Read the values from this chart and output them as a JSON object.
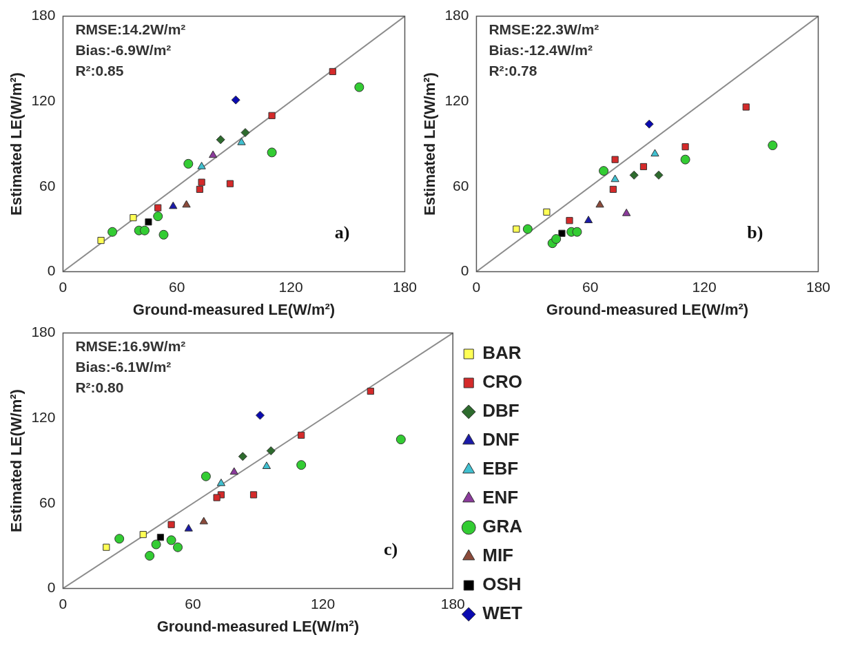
{
  "chart_data": [
    {
      "type": "scatter",
      "xlabel": "Ground-measured LE(W/m²)",
      "ylabel": "Estimated LE(W/m²)",
      "xlim": [
        0,
        180
      ],
      "xticks": [
        0,
        60,
        120,
        180
      ],
      "ylim": [
        0,
        180
      ],
      "yticks": [
        0,
        60,
        120,
        180
      ],
      "grid": false,
      "legend": false,
      "annotations": [
        "RMSE:14.2W/m²",
        "Bias:-6.9W/m²",
        "R²:0.85",
        "a)"
      ],
      "series": [
        {
          "type": "line",
          "color": "#8c8c8c",
          "marker": "none",
          "x": [
            0,
            180
          ],
          "values": [
            0,
            180
          ]
        },
        {
          "color": "#ffff55",
          "marker": "square",
          "x": [
            20,
            37
          ],
          "values": [
            22,
            38
          ]
        },
        {
          "color": "#d42a2a",
          "marker": "square",
          "x": [
            142,
            110,
            50,
            73,
            72,
            88
          ],
          "values": [
            141,
            110,
            45,
            63,
            58,
            62
          ]
        },
        {
          "color": "#2e6b2e",
          "marker": "diamond",
          "x": [
            83,
            96
          ],
          "values": [
            93,
            98
          ]
        },
        {
          "color": "#1a1aa8",
          "marker": "triangle",
          "x": [
            58
          ],
          "values": [
            46
          ]
        },
        {
          "color": "#40c0d0",
          "marker": "triangle",
          "x": [
            94,
            73
          ],
          "values": [
            91,
            74
          ]
        },
        {
          "color": "#8b3a9b",
          "marker": "triangle",
          "x": [
            79
          ],
          "values": [
            82
          ]
        },
        {
          "color": "#33cc33",
          "marker": "circle",
          "x": [
            156,
            110,
            66,
            26,
            50,
            40,
            43,
            53
          ],
          "values": [
            130,
            84,
            76,
            28,
            39,
            29,
            29,
            26
          ]
        },
        {
          "color": "#8b4a3a",
          "marker": "triangle",
          "x": [
            65
          ],
          "values": [
            47
          ]
        },
        {
          "color": "#000000",
          "marker": "square",
          "x": [
            45
          ],
          "values": [
            35
          ]
        },
        {
          "color": "#0a0ab0",
          "marker": "diamond",
          "x": [
            91
          ],
          "values": [
            121
          ]
        }
      ]
    },
    {
      "type": "scatter",
      "xlabel": "Ground-measured LE(W/m²)",
      "ylabel": "Estimated LE(W/m²)",
      "xlim": [
        0,
        180
      ],
      "xticks": [
        0,
        60,
        120,
        180
      ],
      "ylim": [
        0,
        180
      ],
      "yticks": [
        0,
        60,
        120,
        180
      ],
      "grid": false,
      "legend": false,
      "annotations": [
        "RMSE:22.3W/m²",
        "Bias:-12.4W/m²",
        "R²:0.78",
        "b)"
      ],
      "series": [
        {
          "type": "line",
          "color": "#8c8c8c",
          "marker": "none",
          "x": [
            0,
            180
          ],
          "values": [
            0,
            180
          ]
        },
        {
          "color": "#ffff55",
          "marker": "square",
          "x": [
            21,
            37
          ],
          "values": [
            30,
            42
          ]
        },
        {
          "color": "#d42a2a",
          "marker": "square",
          "x": [
            142,
            110,
            73,
            88,
            72,
            49
          ],
          "values": [
            116,
            88,
            79,
            74,
            58,
            36
          ]
        },
        {
          "color": "#2e6b2e",
          "marker": "diamond",
          "x": [
            83,
            96
          ],
          "values": [
            68,
            68
          ]
        },
        {
          "color": "#1a1aa8",
          "marker": "triangle",
          "x": [
            59
          ],
          "values": [
            36
          ]
        },
        {
          "color": "#40c0d0",
          "marker": "triangle",
          "x": [
            94,
            73
          ],
          "values": [
            83,
            65
          ]
        },
        {
          "color": "#8b3a9b",
          "marker": "triangle",
          "x": [
            79
          ],
          "values": [
            41
          ]
        },
        {
          "color": "#33cc33",
          "marker": "circle",
          "x": [
            156,
            110,
            67,
            27,
            50,
            53,
            40,
            42
          ],
          "values": [
            89,
            79,
            71,
            30,
            28,
            28,
            20,
            23
          ]
        },
        {
          "color": "#8b4a3a",
          "marker": "triangle",
          "x": [
            65
          ],
          "values": [
            47
          ]
        },
        {
          "color": "#000000",
          "marker": "square",
          "x": [
            45
          ],
          "values": [
            27
          ]
        },
        {
          "color": "#0a0ab0",
          "marker": "diamond",
          "x": [
            91
          ],
          "values": [
            104
          ]
        }
      ]
    },
    {
      "type": "scatter",
      "xlabel": "Ground-measured LE(W/m²)",
      "ylabel": "Estimated LE(W/m²)",
      "xlim": [
        0,
        180
      ],
      "xticks": [
        0,
        60,
        120,
        180
      ],
      "ylim": [
        0,
        180
      ],
      "yticks": [
        0,
        60,
        120,
        180
      ],
      "grid": false,
      "legend": "right",
      "annotations": [
        "RMSE:16.9W/m²",
        "Bias:-6.1W/m²",
        "R²:0.80",
        "c)"
      ],
      "series": [
        {
          "type": "line",
          "color": "#8c8c8c",
          "marker": "none",
          "x": [
            0,
            180
          ],
          "values": [
            0,
            180
          ]
        },
        {
          "name": "BAR",
          "color": "#ffff55",
          "marker": "square",
          "x": [
            20,
            37
          ],
          "values": [
            29,
            38
          ]
        },
        {
          "name": "CRO",
          "color": "#d42a2a",
          "marker": "square",
          "x": [
            142,
            110,
            50,
            73,
            71,
            88
          ],
          "values": [
            139,
            108,
            45,
            66,
            64,
            66
          ]
        },
        {
          "name": "DBF",
          "color": "#2e6b2e",
          "marker": "diamond",
          "x": [
            83,
            96
          ],
          "values": [
            93,
            97
          ]
        },
        {
          "name": "DNF",
          "color": "#1a1aa8",
          "marker": "triangle",
          "x": [
            58
          ],
          "values": [
            42
          ]
        },
        {
          "name": "EBF",
          "color": "#40c0d0",
          "marker": "triangle",
          "x": [
            94,
            73
          ],
          "values": [
            86,
            74
          ]
        },
        {
          "name": "ENF",
          "color": "#8b3a9b",
          "marker": "triangle",
          "x": [
            79
          ],
          "values": [
            82
          ]
        },
        {
          "name": "GRA",
          "color": "#33cc33",
          "marker": "circle",
          "x": [
            156,
            110,
            66,
            26,
            50,
            43,
            53,
            40
          ],
          "values": [
            105,
            87,
            79,
            35,
            34,
            31,
            29,
            23
          ]
        },
        {
          "name": "MIF",
          "color": "#8b4a3a",
          "marker": "triangle",
          "x": [
            65
          ],
          "values": [
            47
          ]
        },
        {
          "name": "OSH",
          "color": "#000000",
          "marker": "square",
          "x": [
            45
          ],
          "values": [
            36
          ]
        },
        {
          "name": "WET",
          "color": "#0a0ab0",
          "marker": "diamond",
          "x": [
            91
          ],
          "values": [
            122
          ]
        }
      ]
    }
  ]
}
